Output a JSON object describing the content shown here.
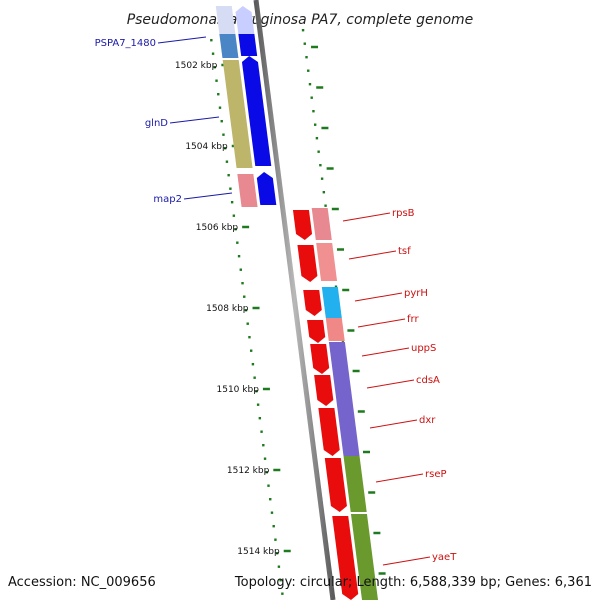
{
  "title": "Pseudomonas aeruginosa PA7, complete genome",
  "footer": {
    "accession": "Accession: NC_009656",
    "summary": "Topology: circular; Length: 6,588,339 bp; Genes: 6,361"
  },
  "ruler_ticks": [
    {
      "label": "1502 kbp"
    },
    {
      "label": "1504 kbp"
    },
    {
      "label": "1506 kbp"
    },
    {
      "label": "1508 kbp"
    },
    {
      "label": "1510 kbp"
    },
    {
      "label": "1512 kbp"
    },
    {
      "label": "1514 kbp"
    }
  ],
  "genes_left": [
    {
      "label": "PSPA7_1480",
      "color": "#1a1aa8"
    },
    {
      "label": "glnD",
      "color": "#1a1aa8"
    },
    {
      "label": "map2",
      "color": "#1a1aa8"
    }
  ],
  "genes_right": [
    {
      "label": "rpsB",
      "color": "#cc1111"
    },
    {
      "label": "tsf",
      "color": "#cc1111"
    },
    {
      "label": "pyrH",
      "color": "#cc1111"
    },
    {
      "label": "frr",
      "color": "#cc1111"
    },
    {
      "label": "uppS",
      "color": "#cc1111"
    },
    {
      "label": "cdsA",
      "color": "#cc1111"
    },
    {
      "label": "dxr",
      "color": "#cc1111"
    },
    {
      "label": "rseP",
      "color": "#cc1111"
    },
    {
      "label": "yaeT",
      "color": "#cc1111"
    }
  ],
  "colors": {
    "forward_strand": "#0a0ae6",
    "reverse_strand": "#e80c0c",
    "backbone": "#8a8a8a",
    "tick": "#1e7a1e"
  }
}
